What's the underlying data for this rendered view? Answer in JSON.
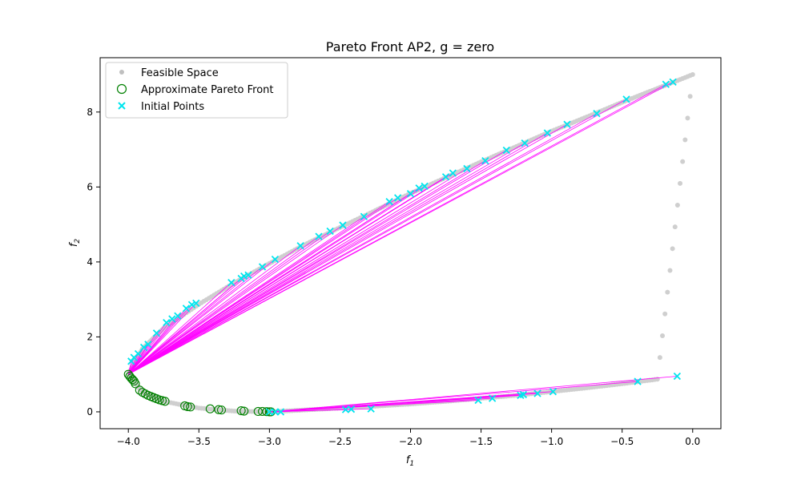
{
  "chart_data": {
    "type": "scatter",
    "title": "Pareto Front AP2, g = zero",
    "xlabel": "f",
    "xlabel_sub": "1",
    "ylabel": "f",
    "ylabel_sub": "2",
    "xlim": [
      -4.2,
      0.2
    ],
    "ylim": [
      -0.45,
      9.45
    ],
    "xticks": [
      -4.0,
      -3.5,
      -3.0,
      -2.5,
      -2.0,
      -1.5,
      -1.0,
      -0.5,
      0.0
    ],
    "xtick_labels": [
      "−4.0",
      "−3.5",
      "−3.0",
      "−2.5",
      "−2.0",
      "−1.5",
      "−1.0",
      "−0.5",
      "0.0"
    ],
    "yticks": [
      0,
      2,
      4,
      6,
      8
    ],
    "ytick_labels": [
      "0",
      "2",
      "4",
      "6",
      "8"
    ],
    "grid": false,
    "legend_position": "top-left",
    "legend": [
      {
        "label": "Feasible Space",
        "marker": "dot",
        "color": "#bfbfbf"
      },
      {
        "label": "Approximate Pareto Front",
        "marker": "circle",
        "color": "#008000"
      },
      {
        "label": "Initial Points",
        "marker": "x",
        "color": "#00e5ee"
      }
    ],
    "colors": {
      "feasible": "#cfcfcf",
      "pareto_edge": "#008000",
      "initial": "#00e5ee",
      "trajectory": "#ff00ff"
    },
    "feasible_curve": {
      "description_free": true,
      "x": [
        -4.0,
        -3.9,
        -3.75,
        -3.5,
        -3.25,
        -3.0,
        -2.75,
        -2.5,
        -2.25,
        -2.0,
        -1.75,
        -1.5,
        -1.25,
        -1.0,
        -0.75,
        -0.5,
        -0.25,
        0.0,
        -0.25,
        -0.5,
        -0.75,
        -1.0,
        -1.25,
        -1.5,
        -1.75,
        -2.0,
        -2.25,
        -2.5,
        -2.75,
        -3.0,
        -3.25,
        -3.5,
        -3.75,
        -3.9,
        -4.0
      ],
      "y": [
        1.0,
        1.68,
        2.23,
        2.87,
        3.44,
        3.96,
        4.46,
        4.92,
        5.37,
        5.83,
        6.25,
        6.67,
        7.08,
        7.49,
        7.87,
        8.26,
        8.63,
        9.0,
        0.87,
        0.75,
        0.64,
        0.54,
        0.44,
        0.36,
        0.28,
        0.21,
        0.15,
        0.1,
        0.05,
        0.0,
        0.02,
        0.1,
        0.28,
        0.52,
        1.0
      ]
    },
    "pareto_front": {
      "x": [
        -4.0,
        -3.99,
        -3.98,
        -3.97,
        -3.96,
        -3.95,
        -3.92,
        -3.9,
        -3.88,
        -3.86,
        -3.84,
        -3.82,
        -3.8,
        -3.78,
        -3.76,
        -3.74,
        -3.6,
        -3.58,
        -3.56,
        -3.42,
        -3.36,
        -3.34,
        -3.2,
        -3.18,
        -3.08,
        -3.05,
        -3.02,
        -3.0,
        -2.99
      ],
      "y": [
        1.0,
        0.95,
        0.9,
        0.86,
        0.82,
        0.75,
        0.58,
        0.52,
        0.48,
        0.44,
        0.41,
        0.38,
        0.35,
        0.32,
        0.3,
        0.28,
        0.16,
        0.14,
        0.13,
        0.08,
        0.06,
        0.05,
        0.03,
        0.02,
        0.01,
        0.01,
        0.005,
        0.0,
        0.0
      ]
    },
    "initial_points": {
      "x": [
        -3.98,
        -3.96,
        -3.93,
        -3.89,
        -3.86,
        -3.8,
        -3.73,
        -3.69,
        -3.65,
        -3.59,
        -3.55,
        -3.52,
        -3.27,
        -3.2,
        -3.18,
        -3.15,
        -3.05,
        -2.96,
        -2.78,
        -2.65,
        -2.57,
        -2.48,
        -2.33,
        -2.15,
        -2.09,
        -2.0,
        -1.94,
        -1.9,
        -1.75,
        -1.7,
        -1.6,
        -1.47,
        -1.32,
        -1.19,
        -1.03,
        -0.89,
        -0.68,
        -0.47,
        -0.19,
        -0.14,
        -3.0,
        -2.96,
        -2.92,
        -2.46,
        -2.42,
        -2.28,
        -1.52,
        -1.42,
        -1.22,
        -1.2,
        -1.1,
        -0.99,
        -0.39,
        -0.11
      ],
      "y": [
        1.35,
        1.45,
        1.55,
        1.72,
        1.8,
        2.1,
        2.38,
        2.48,
        2.56,
        2.76,
        2.86,
        2.9,
        3.45,
        3.56,
        3.62,
        3.65,
        3.87,
        4.07,
        4.43,
        4.68,
        4.82,
        4.98,
        5.21,
        5.61,
        5.71,
        5.82,
        5.97,
        6.02,
        6.27,
        6.37,
        6.49,
        6.7,
        6.98,
        7.17,
        7.44,
        7.67,
        7.96,
        8.34,
        8.74,
        8.8,
        0.0,
        0.0,
        0.0,
        0.06,
        0.07,
        0.08,
        0.31,
        0.36,
        0.44,
        0.46,
        0.49,
        0.54,
        0.81,
        0.95
      ]
    },
    "trajectory_targets": {
      "upper_x": -4.0,
      "upper_y": 1.0,
      "lower_x": -3.0,
      "lower_y": 0.0,
      "upper_count": 40
    }
  }
}
